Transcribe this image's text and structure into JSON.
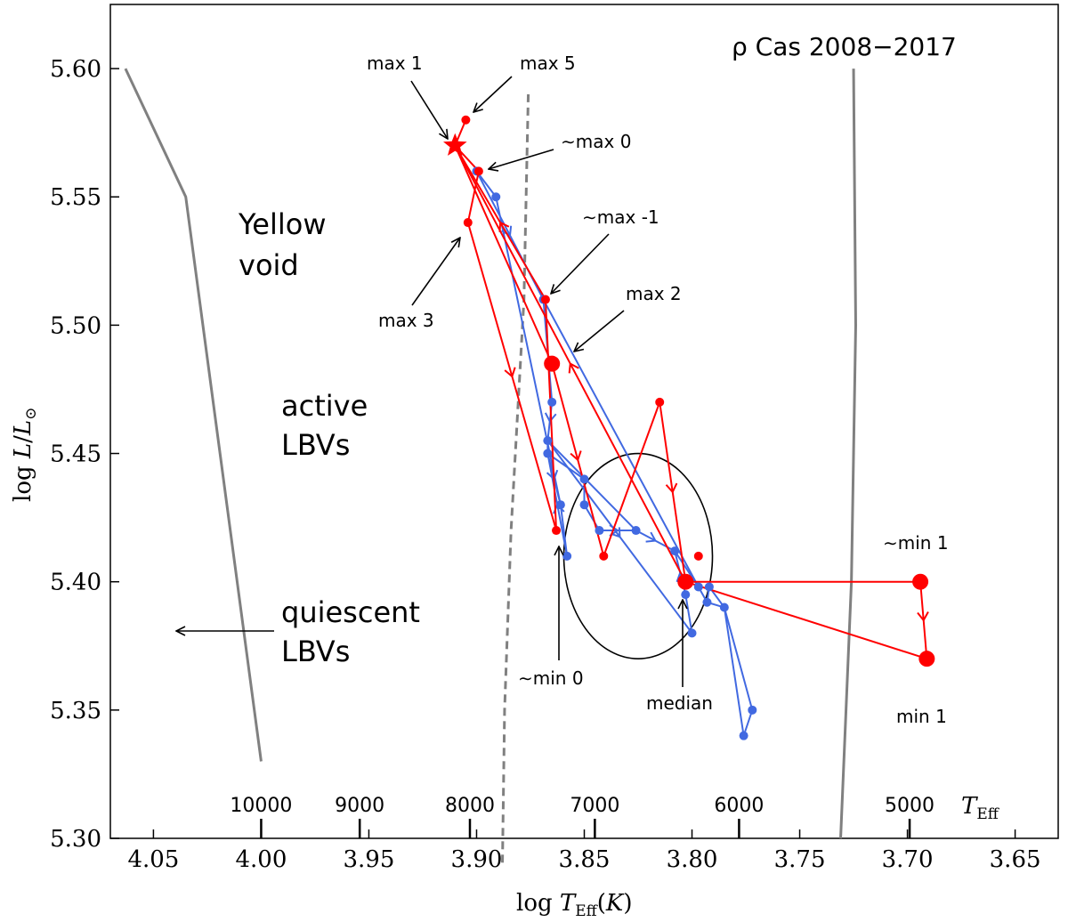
{
  "chart_data": {
    "type": "scatter",
    "title": "ρ Cas 2008−2017",
    "xlabel": "log T_Eff(K)",
    "ylabel": "log L/L_⊙",
    "xlim": [
      4.07,
      3.63
    ],
    "ylim": [
      5.3,
      5.625
    ],
    "x_ticks": [
      "4.05",
      "4.00",
      "3.95",
      "3.90",
      "3.85",
      "3.80",
      "3.75",
      "3.70",
      "3.65"
    ],
    "x_tick_values": [
      4.05,
      4.0,
      3.95,
      3.9,
      3.85,
      3.8,
      3.75,
      3.7,
      3.65
    ],
    "y_ticks": [
      "5.30",
      "5.35",
      "5.40",
      "5.45",
      "5.50",
      "5.55",
      "5.60"
    ],
    "y_tick_values": [
      5.3,
      5.35,
      5.4,
      5.45,
      5.5,
      5.55,
      5.6
    ],
    "teff_axis": {
      "label": "T_Eff",
      "ticks": [
        "10000",
        "9000",
        "8000",
        "7000",
        "6000",
        "5000"
      ],
      "tick_values": [
        10000,
        9000,
        8000,
        7000,
        6000,
        5000
      ]
    },
    "boundaries": [
      {
        "name": "quiescent LBV line",
        "style": "solid",
        "x": [
          4.063,
          4.035,
          4.0
        ],
        "y": [
          5.6,
          5.55,
          5.33
        ]
      },
      {
        "name": "active LBV line",
        "style": "dashed",
        "x": [
          3.876,
          3.878,
          3.884,
          3.887,
          3.888
        ],
        "y": [
          5.59,
          5.51,
          5.42,
          5.35,
          5.29
        ]
      },
      {
        "name": "yellow void boundary",
        "style": "solid",
        "x": [
          3.725,
          3.724,
          3.726,
          3.731
        ],
        "y": [
          5.6,
          5.5,
          5.4,
          5.3
        ]
      }
    ],
    "ellipse": {
      "name": "median region",
      "cx": 3.825,
      "cy": 5.41,
      "rx": 0.0345,
      "ry": 0.04
    },
    "series": [
      {
        "name": "blue track",
        "color": "#4169e1",
        "x": [
          3.9,
          3.891,
          3.869,
          3.865,
          3.867,
          3.867,
          3.861,
          3.858,
          3.85,
          3.85,
          3.843,
          3.826,
          3.808,
          3.803,
          3.8,
          3.797,
          3.793,
          3.792,
          3.785,
          3.776,
          3.772
        ],
        "y": [
          5.56,
          5.55,
          5.51,
          5.47,
          5.455,
          5.45,
          5.43,
          5.41,
          5.44,
          5.43,
          5.42,
          5.42,
          5.412,
          5.395,
          5.38,
          5.398,
          5.392,
          5.398,
          5.39,
          5.34,
          5.35
        ]
      },
      {
        "name": "red track",
        "color": "#ff0000",
        "x": [
          3.91,
          3.905,
          3.904,
          3.899,
          3.868,
          3.865,
          3.863,
          3.841,
          3.815,
          3.803,
          3.797,
          3.694,
          3.691
        ],
        "y": [
          5.57,
          5.58,
          5.54,
          5.56,
          5.51,
          5.485,
          5.42,
          5.41,
          5.47,
          5.4,
          5.41,
          5.4,
          5.37
        ]
      }
    ]
  },
  "labels": {
    "max1": "max 1",
    "max5": "max 5",
    "max0": "∼max 0",
    "maxm1": "∼max -1",
    "max2": "max 2",
    "max3": "max 3",
    "min0": "∼min 0",
    "median": "median",
    "min1a": "∼min 1",
    "min1": "min 1",
    "yellow_void_1": "Yellow",
    "yellow_void_2": "void",
    "active_1": "active",
    "active_2": "LBVs",
    "quiescent_1": "quiescent",
    "quiescent_2": "LBVs"
  },
  "colors": {
    "red": "#ff0000",
    "blue": "#4169e1",
    "gray": "#808080"
  }
}
